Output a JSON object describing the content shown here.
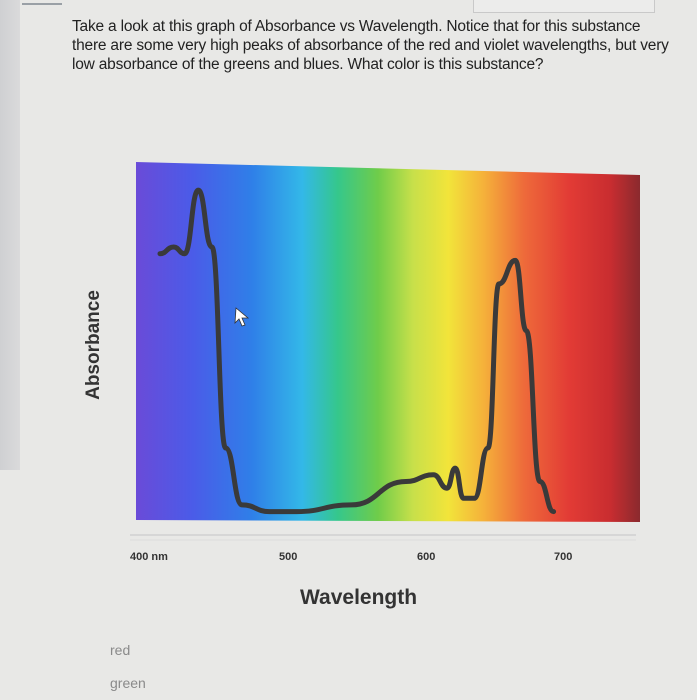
{
  "question": {
    "text": "Take a look at this graph of Absorbance vs Wavelength. Notice that for this substance there are some very high peaks of absorbance of the red and violet wavelengths, but very low absorbance of the greens and blues. What color is this substance?"
  },
  "chart_data": {
    "type": "line",
    "xlabel": "Wavelength",
    "ylabel": "Absorbance",
    "x_ticks": [
      "400 nm",
      "500",
      "600",
      "700"
    ],
    "background": "visible spectrum (violet to red)",
    "series": [
      {
        "x": [
          400,
          410,
          418,
          428,
          438,
          448,
          460,
          480,
          500,
          540,
          580,
          600,
          610,
          616,
          622,
          630,
          640,
          648,
          660,
          668,
          678,
          688
        ],
        "y": [
          0.78,
          0.8,
          0.78,
          0.97,
          0.8,
          0.2,
          0.03,
          0.01,
          0.01,
          0.03,
          0.1,
          0.12,
          0.08,
          0.14,
          0.05,
          0.05,
          0.2,
          0.69,
          0.76,
          0.55,
          0.1,
          0.01
        ]
      }
    ]
  },
  "answers": [
    {
      "label": "red"
    },
    {
      "label": "green"
    }
  ],
  "colors": {
    "curve": "#3a3a3a",
    "background": "#e8e8e6"
  }
}
